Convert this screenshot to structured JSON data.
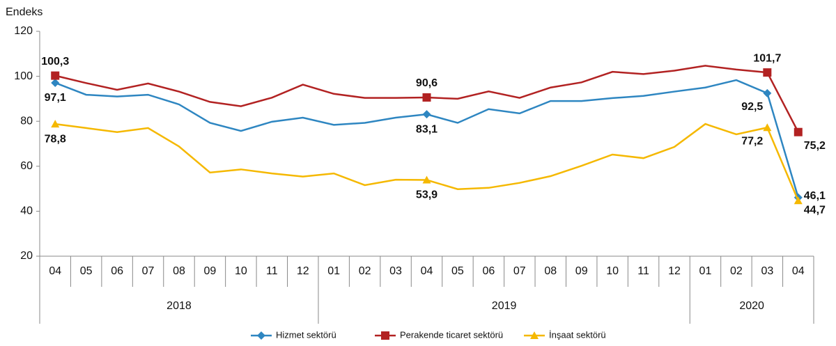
{
  "chart_data": {
    "type": "line",
    "y_label": "Endeks",
    "groups": [
      {
        "name": "2018",
        "categories": [
          "04",
          "05",
          "06",
          "07",
          "08",
          "09",
          "10",
          "11",
          "12"
        ]
      },
      {
        "name": "2019",
        "categories": [
          "01",
          "02",
          "03",
          "04",
          "05",
          "06",
          "07",
          "08",
          "09",
          "10",
          "11",
          "12"
        ]
      },
      {
        "name": "2020",
        "categories": [
          "01",
          "02",
          "03",
          "04"
        ]
      }
    ],
    "ylim": [
      20,
      120
    ],
    "yticks": [
      20,
      40,
      60,
      80,
      100,
      120
    ],
    "legend": "bottom",
    "series": [
      {
        "name": "Hizmet sektörü",
        "color": "#2e86c1",
        "marker": "diamond",
        "values": [
          97.1,
          91.8,
          91.0,
          91.8,
          87.5,
          79.3,
          75.7,
          79.8,
          81.6,
          78.4,
          79.3,
          81.6,
          83.1,
          79.3,
          85.4,
          83.5,
          89.0,
          89.0,
          90.3,
          91.3,
          93.2,
          95.0,
          98.3,
          92.5,
          46.1
        ],
        "value_labels": [
          "97,1",
          null,
          null,
          null,
          null,
          null,
          null,
          null,
          null,
          null,
          null,
          null,
          "83,1",
          null,
          null,
          null,
          null,
          null,
          null,
          null,
          null,
          null,
          null,
          "92,5",
          "46,1"
        ]
      },
      {
        "name": "Perakende ticaret sektörü",
        "color": "#b22222",
        "marker": "square",
        "values": [
          100.3,
          97.0,
          94.0,
          96.8,
          93.2,
          88.6,
          86.7,
          90.5,
          96.3,
          92.2,
          90.4,
          90.4,
          90.6,
          90.0,
          93.3,
          90.4,
          95.0,
          97.3,
          102.0,
          101.0,
          102.5,
          104.7,
          103.0,
          101.7,
          75.2
        ],
        "value_labels": [
          "100,3",
          null,
          null,
          null,
          null,
          null,
          null,
          null,
          null,
          null,
          null,
          null,
          "90,6",
          null,
          null,
          null,
          null,
          null,
          null,
          null,
          null,
          null,
          null,
          "101,7",
          "75,2"
        ]
      },
      {
        "name": "İnşaat sektörü",
        "color": "#f5b800",
        "marker": "triangle",
        "values": [
          78.8,
          77.0,
          75.2,
          77.0,
          68.8,
          57.2,
          58.6,
          56.8,
          55.4,
          56.8,
          51.6,
          54.0,
          53.9,
          49.8,
          50.4,
          52.6,
          55.6,
          60.2,
          65.2,
          63.6,
          68.6,
          78.8,
          74.2,
          77.2,
          44.7
        ],
        "value_labels": [
          "78,8",
          null,
          null,
          null,
          null,
          null,
          null,
          null,
          null,
          null,
          null,
          null,
          "53,9",
          null,
          null,
          null,
          null,
          null,
          null,
          null,
          null,
          null,
          null,
          "77,2",
          "44,7"
        ]
      }
    ]
  }
}
